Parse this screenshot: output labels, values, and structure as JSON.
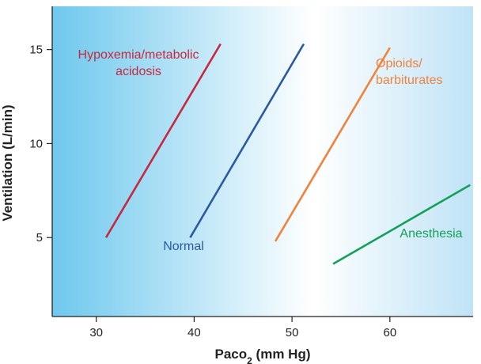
{
  "chart_data": {
    "type": "line",
    "xlabel_main": "Paco",
    "xlabel_sub": "2",
    "xlabel_unit": " (mm Hg)",
    "ylabel": "Ventilation (L/min)",
    "xlim": [
      25.5,
      68.5
    ],
    "ylim": [
      0.8,
      17.3
    ],
    "x_ticks": [
      30,
      40,
      50,
      60
    ],
    "y_ticks": [
      5,
      10,
      15
    ],
    "background": {
      "left": "#6ec8ee",
      "middle": "#ffffff",
      "right": "#bfe3f6"
    },
    "series": [
      {
        "name": "Hypoxemia/metabolic acidosis",
        "label_lines": [
          "Hypoxemia/metabolic",
          "acidosis"
        ],
        "color": "#c8283e",
        "x": [
          31,
          42.7
        ],
        "y": [
          5,
          15.3
        ]
      },
      {
        "name": "Normal",
        "label_lines": [
          "Normal"
        ],
        "color": "#2b5aa3",
        "x": [
          39.6,
          51.2
        ],
        "y": [
          5,
          15.3
        ]
      },
      {
        "name": "Opioids/ barbiturates",
        "label_lines": [
          "Opioids/",
          "barbiturates"
        ],
        "color": "#f0823c",
        "x": [
          48.3,
          60
        ],
        "y": [
          4.8,
          15.1
        ]
      },
      {
        "name": "Anesthesia",
        "label_lines": [
          "Anesthesia"
        ],
        "color": "#15a05a",
        "x": [
          54.2,
          68.2
        ],
        "y": [
          3.6,
          7.8
        ]
      }
    ]
  }
}
